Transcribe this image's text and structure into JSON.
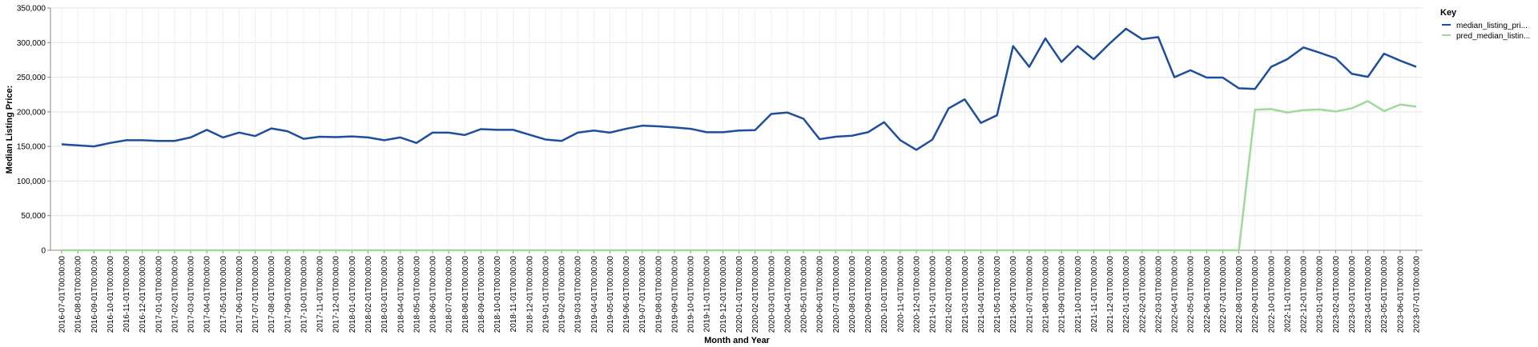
{
  "chart_data": {
    "type": "line",
    "xlabel": "Month and Year",
    "ylabel": "Median Listing Price:",
    "ylim": [
      0,
      350000
    ],
    "yticks": [
      "0",
      "50,000",
      "100,000",
      "150,000",
      "200,000",
      "250,000",
      "300,000",
      "350,000"
    ],
    "grid": true,
    "legend": {
      "title": "Key",
      "placement": "right"
    },
    "x": [
      "2016-07-01T00:00:00",
      "2016-08-01T00:00:00",
      "2016-09-01T00:00:00",
      "2016-10-01T00:00:00",
      "2016-11-01T00:00:00",
      "2016-12-01T00:00:00",
      "2017-01-01T00:00:00",
      "2017-02-01T00:00:00",
      "2017-03-01T00:00:00",
      "2017-04-01T00:00:00",
      "2017-05-01T00:00:00",
      "2017-06-01T00:00:00",
      "2017-07-01T00:00:00",
      "2017-08-01T00:00:00",
      "2017-09-01T00:00:00",
      "2017-10-01T00:00:00",
      "2017-11-01T00:00:00",
      "2017-12-01T00:00:00",
      "2018-01-01T00:00:00",
      "2018-02-01T00:00:00",
      "2018-03-01T00:00:00",
      "2018-04-01T00:00:00",
      "2018-05-01T00:00:00",
      "2018-06-01T00:00:00",
      "2018-07-01T00:00:00",
      "2018-08-01T00:00:00",
      "2018-09-01T00:00:00",
      "2018-10-01T00:00:00",
      "2018-11-01T00:00:00",
      "2018-12-01T00:00:00",
      "2019-01-01T00:00:00",
      "2019-02-01T00:00:00",
      "2019-03-01T00:00:00",
      "2019-04-01T00:00:00",
      "2019-05-01T00:00:00",
      "2019-06-01T00:00:00",
      "2019-07-01T00:00:00",
      "2019-08-01T00:00:00",
      "2019-09-01T00:00:00",
      "2019-10-01T00:00:00",
      "2019-11-01T00:00:00",
      "2019-12-01T00:00:00",
      "2020-01-01T00:00:00",
      "2020-02-01T00:00:00",
      "2020-03-01T00:00:00",
      "2020-04-01T00:00:00",
      "2020-05-01T00:00:00",
      "2020-06-01T00:00:00",
      "2020-07-01T00:00:00",
      "2020-08-01T00:00:00",
      "2020-09-01T00:00:00",
      "2020-10-01T00:00:00",
      "2020-11-01T00:00:00",
      "2020-12-01T00:00:00",
      "2021-01-01T00:00:00",
      "2021-02-01T00:00:00",
      "2021-03-01T00:00:00",
      "2021-04-01T00:00:00",
      "2021-05-01T00:00:00",
      "2021-06-01T00:00:00",
      "2021-07-01T00:00:00",
      "2021-08-01T00:00:00",
      "2021-09-01T00:00:00",
      "2021-10-01T00:00:00",
      "2021-11-01T00:00:00",
      "2021-12-01T00:00:00",
      "2022-01-01T00:00:00",
      "2022-02-01T00:00:00",
      "2022-03-01T00:00:00",
      "2022-04-01T00:00:00",
      "2022-05-01T00:00:00",
      "2022-06-01T00:00:00",
      "2022-07-01T00:00:00",
      "2022-08-01T00:00:00",
      "2022-09-01T00:00:00",
      "2022-10-01T00:00:00",
      "2022-11-01T00:00:00",
      "2022-12-01T00:00:00",
      "2023-01-01T00:00:00",
      "2023-02-01T00:00:00",
      "2023-03-01T00:00:00",
      "2023-04-01T00:00:00",
      "2023-05-01T00:00:00",
      "2023-06-01T00:00:00",
      "2023-07-01T00:00:00"
    ],
    "series": [
      {
        "name": "median_listing_pri...",
        "color": "#1f4e9c",
        "values": [
          153000,
          null,
          150000,
          155000,
          159000,
          159000,
          158000,
          158000,
          163000,
          174000,
          163000,
          170000,
          165000,
          176000,
          172000,
          161000,
          164000,
          163500,
          164500,
          163000,
          159000,
          163000,
          155000,
          170000,
          170000,
          166500,
          175000,
          174000,
          174000,
          167000,
          160000,
          158000,
          170000,
          173000,
          170000,
          175500,
          180000,
          179000,
          177500,
          175500,
          170500,
          170500,
          173000,
          173500,
          197000,
          199000,
          190000,
          160500,
          164000,
          165500,
          170500,
          185000,
          159000,
          145000,
          160000,
          205000,
          218000,
          184000,
          195000,
          295000,
          265000,
          306000,
          272000,
          295000,
          276000,
          299000,
          320000,
          305000,
          308000,
          250000,
          260000,
          249500,
          249500,
          234000,
          233000,
          265000,
          276000,
          293000,
          285500,
          277500,
          255000,
          250500,
          284000,
          274000,
          265000
        ]
      },
      {
        "name": "pred_median_listin...",
        "color": "#a1d99b",
        "values": [
          0,
          0,
          0,
          0,
          0,
          0,
          0,
          0,
          0,
          0,
          0,
          0,
          0,
          0,
          0,
          0,
          0,
          0,
          0,
          0,
          0,
          0,
          0,
          0,
          0,
          0,
          0,
          0,
          0,
          0,
          0,
          0,
          0,
          0,
          0,
          0,
          0,
          0,
          0,
          0,
          0,
          0,
          0,
          0,
          0,
          0,
          0,
          0,
          0,
          0,
          0,
          0,
          0,
          0,
          0,
          0,
          0,
          0,
          0,
          0,
          0,
          0,
          0,
          0,
          0,
          0,
          0,
          0,
          0,
          0,
          0,
          0,
          0,
          0,
          203000,
          204000,
          199000,
          202500,
          203500,
          200500,
          205000,
          215500,
          201000,
          210500,
          207500
        ]
      }
    ]
  }
}
